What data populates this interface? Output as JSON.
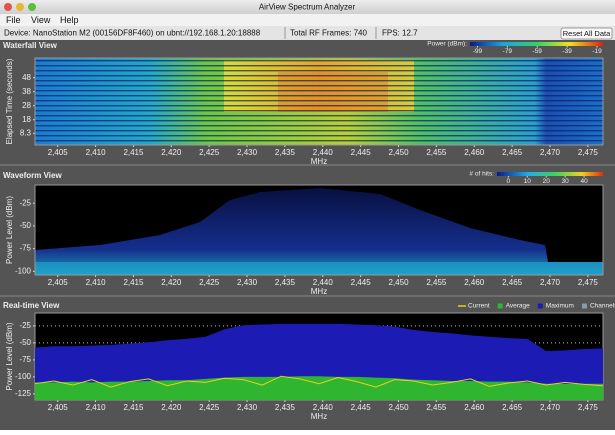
{
  "window": {
    "title": "AirView Spectrum Analyzer"
  },
  "menu": [
    "File",
    "View",
    "Help"
  ],
  "status": {
    "device": "Device: NanoStation M2 (00156DF8F460) on ubnt://192.168.1.20:18888",
    "frames": "Total RF Frames: 740",
    "fps": "FPS: 12.7",
    "reset_button": "Reset All Data"
  },
  "frequency_axis": {
    "label": "MHz",
    "lim": [
      2402,
      2477
    ],
    "ticks": [
      {
        "value": 2405,
        "label": "2,405"
      },
      {
        "value": 2410,
        "label": "2,410"
      },
      {
        "value": 2415,
        "label": "2,415"
      },
      {
        "value": 2420,
        "label": "2,420"
      },
      {
        "value": 2425,
        "label": "2,425"
      },
      {
        "value": 2430,
        "label": "2,430"
      },
      {
        "value": 2435,
        "label": "2,435"
      },
      {
        "value": 2440,
        "label": "2,440"
      },
      {
        "value": 2445,
        "label": "2,445"
      },
      {
        "value": 2450,
        "label": "2,450"
      },
      {
        "value": 2455,
        "label": "2,455"
      },
      {
        "value": 2460,
        "label": "2,460"
      },
      {
        "value": 2465,
        "label": "2,465"
      },
      {
        "value": 2470,
        "label": "2,470"
      },
      {
        "value": 2475,
        "label": "2,475"
      }
    ]
  },
  "waterfall": {
    "title": "Waterfall View",
    "y_label": "Elapsed Time (seconds)",
    "ylim": [
      0,
      62
    ],
    "yticks": [
      8.3,
      18,
      28,
      38,
      48
    ],
    "legend": {
      "label": "Power (dBm):",
      "lim": [
        -104,
        -15
      ],
      "ticks": [
        -99,
        -79,
        -59,
        -39,
        -19
      ]
    }
  },
  "waveform": {
    "title": "Waveform View",
    "y_label": "Power Level (dBm)",
    "ylim": [
      -104,
      -5
    ],
    "yticks": [
      -100,
      -75,
      -50,
      -25
    ],
    "legend": {
      "label": "# of hits:",
      "lim": [
        -6,
        50
      ],
      "ticks": [
        0,
        10,
        20,
        30,
        40
      ]
    }
  },
  "realtime": {
    "type": "area",
    "title": "Real-time View",
    "y_label": "Power Level (dBm)",
    "ylim": [
      -134,
      -6
    ],
    "yticks": [
      -125,
      -100,
      -75,
      -50,
      -25
    ],
    "grid": true,
    "x": [
      2402,
      2404.5,
      2407,
      2409.5,
      2412,
      2414.5,
      2417,
      2419.5,
      2422,
      2424.5,
      2427,
      2429.5,
      2432,
      2434.5,
      2437,
      2439.5,
      2442,
      2444.5,
      2447,
      2449.5,
      2452,
      2454.5,
      2457,
      2459.5,
      2462,
      2464.5,
      2467,
      2469.5,
      2472,
      2474.5,
      2477
    ],
    "series": [
      {
        "name": "Current",
        "color": "#e8d020",
        "values": [
          -110,
          -106,
          -112,
          -104,
          -115,
          -107,
          -103,
          -113,
          -106,
          -108,
          -102,
          -104,
          -112,
          -99,
          -103,
          -110,
          -101,
          -107,
          -115,
          -104,
          -106,
          -112,
          -108,
          -103,
          -114,
          -109,
          -106,
          -112,
          -108,
          -111,
          -113
        ]
      },
      {
        "name": "Average",
        "color": "#2fb52f",
        "values": [
          -108,
          -108,
          -107,
          -108,
          -107,
          -107,
          -106,
          -105,
          -105,
          -103,
          -101,
          -100,
          -100,
          -100,
          -99,
          -99,
          -100,
          -100,
          -101,
          -102,
          -104,
          -105,
          -106,
          -106,
          -107,
          -107,
          -108,
          -110,
          -110,
          -110,
          -110
        ]
      },
      {
        "name": "Maximum",
        "color": "#1c1cb4",
        "values": [
          -57,
          -55,
          -55,
          -54,
          -53,
          -51,
          -49,
          -46,
          -44,
          -41,
          -30,
          -24,
          -23,
          -22,
          -22,
          -22,
          -22,
          -23,
          -24,
          -26,
          -31,
          -34,
          -36,
          -39,
          -41,
          -43,
          -44,
          -62,
          -61,
          -59,
          -58
        ]
      }
    ],
    "channels": {
      "name": "Channels",
      "color": "#8a9aa8"
    }
  }
}
